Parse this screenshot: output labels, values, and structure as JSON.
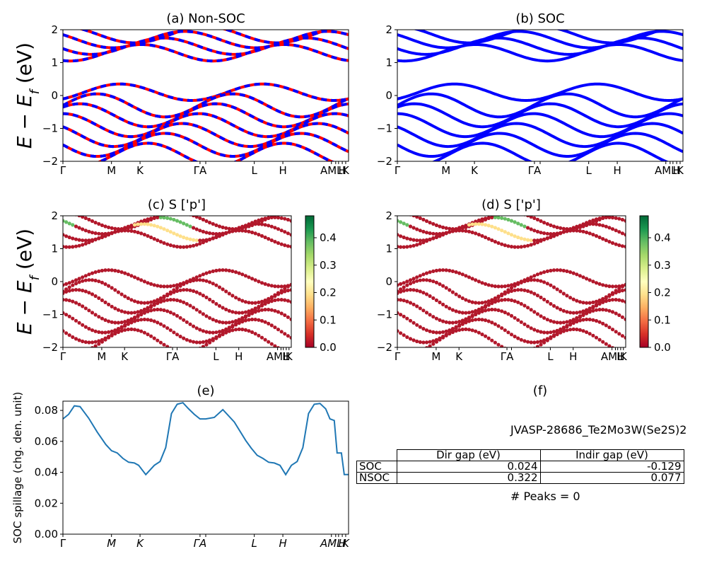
{
  "chart_data": [
    {
      "type": "line",
      "title": "(a) Non-SOC",
      "ylabel": "$E-E_f$ (eV)",
      "ylim": [
        -2,
        2
      ],
      "yticks": [
        "2",
        "1",
        "0",
        "−1",
        "−2"
      ],
      "xtick_labels": [
        "Γ",
        "M",
        "K",
        "Γ",
        "A",
        "L",
        "H",
        "A",
        "M",
        "L",
        "H",
        "K"
      ],
      "series": [
        {
          "color": "#ff0000",
          "style": "solid"
        },
        {
          "color": "#0000ff",
          "style": "dashed"
        }
      ],
      "bands_conduction_eV": [
        1.85,
        1.7,
        1.5,
        1.3,
        0.1
      ],
      "bands_valence_eV": [
        -0.3,
        -0.6,
        -0.9,
        -1.2,
        -1.5,
        -1.8
      ]
    },
    {
      "type": "line",
      "title": "(b) SOC",
      "ylim": [
        -2,
        2
      ],
      "yticks": [
        "2",
        "1",
        "0",
        "−1",
        "−2"
      ],
      "xtick_labels": [
        "Γ",
        "M",
        "K",
        "Γ",
        "A",
        "L",
        "H",
        "A",
        "M",
        "L",
        "H",
        "K"
      ],
      "series": [
        {
          "color": "#0000ff",
          "style": "solid"
        }
      ]
    },
    {
      "type": "scatter",
      "title": "(c)  S ['p']",
      "ylabel": "$E-E_f$ (eV)",
      "ylim": [
        -2,
        2
      ],
      "yticks": [
        "2",
        "1",
        "0",
        "−1",
        "−2"
      ],
      "xtick_labels": [
        "Γ",
        "M",
        "K",
        "Γ",
        "A",
        "L",
        "H",
        "A",
        "M",
        "L",
        "H",
        "K"
      ],
      "colorbar": {
        "cmap": "RdYlGn",
        "ticks": [
          "0.4",
          "0.3",
          "0.2",
          "0.1",
          "0.0"
        ],
        "range": [
          0,
          0.48
        ]
      }
    },
    {
      "type": "scatter",
      "title": "(d) S ['p']",
      "ylim": [
        -2,
        2
      ],
      "yticks": [
        "2",
        "1",
        "0",
        "−1",
        "−2"
      ],
      "xtick_labels": [
        "Γ",
        "M",
        "K",
        "Γ",
        "A",
        "L",
        "H",
        "A",
        "M",
        "L",
        "H",
        "K"
      ],
      "colorbar": {
        "cmap": "RdYlGn",
        "ticks": [
          "0.4",
          "0.3",
          "0.2",
          "0.1",
          "0.0"
        ],
        "range": [
          0,
          0.48
        ]
      }
    },
    {
      "type": "line",
      "title": "(e)",
      "ylabel": "SOC spillage (chg. den. unit)",
      "ylim": [
        0,
        0.086
      ],
      "yticks": [
        "0.08",
        "0.06",
        "0.04",
        "0.02",
        "0.00"
      ],
      "xtick_labels": [
        "Γ",
        "M",
        "K",
        "Γ",
        "A",
        "L",
        "H",
        "A",
        "M",
        "L",
        "H",
        "K"
      ],
      "series": [
        {
          "color": "#1f77b4",
          "x": [
            0,
            0.02,
            0.04,
            0.06,
            0.09,
            0.12,
            0.15,
            0.17,
            0.19,
            0.21,
            0.23,
            0.25,
            0.265,
            0.29,
            0.32,
            0.34,
            0.36,
            0.38,
            0.4,
            0.42,
            0.44,
            0.46,
            0.48,
            0.5,
            0.53,
            0.56,
            0.6,
            0.64,
            0.66,
            0.68,
            0.7,
            0.72,
            0.74,
            0.76,
            0.78,
            0.8,
            0.82,
            0.84,
            0.86,
            0.88,
            0.9,
            0.92,
            0.935,
            0.95,
            0.96,
            0.975,
            0.985,
            1.0
          ],
          "y": [
            0.0745,
            0.0775,
            0.083,
            0.0825,
            0.075,
            0.066,
            0.058,
            0.054,
            0.0525,
            0.049,
            0.0465,
            0.046,
            0.0445,
            0.0385,
            0.0445,
            0.047,
            0.056,
            0.078,
            0.084,
            0.085,
            0.081,
            0.0775,
            0.0745,
            0.0745,
            0.0755,
            0.0805,
            0.0725,
            0.0605,
            0.0555,
            0.051,
            0.049,
            0.0465,
            0.046,
            0.0445,
            0.0385,
            0.0445,
            0.047,
            0.056,
            0.078,
            0.084,
            0.0845,
            0.081,
            0.0745,
            0.0735,
            0.0525,
            0.0525,
            0.0385,
            0.0385
          ]
        }
      ]
    }
  ],
  "panel_f": {
    "title": "(f)",
    "material": "JVASP-28686_Te2Mo3W(Se2S)2",
    "columns": [
      "Dir gap (eV)",
      "Indir gap (eV)"
    ],
    "rows": [
      {
        "label": "SOC",
        "dir": "0.024",
        "indir": "-0.129"
      },
      {
        "label": "NSOC",
        "dir": "0.322",
        "indir": "0.077"
      }
    ],
    "peaks": "# Peaks = 0"
  }
}
